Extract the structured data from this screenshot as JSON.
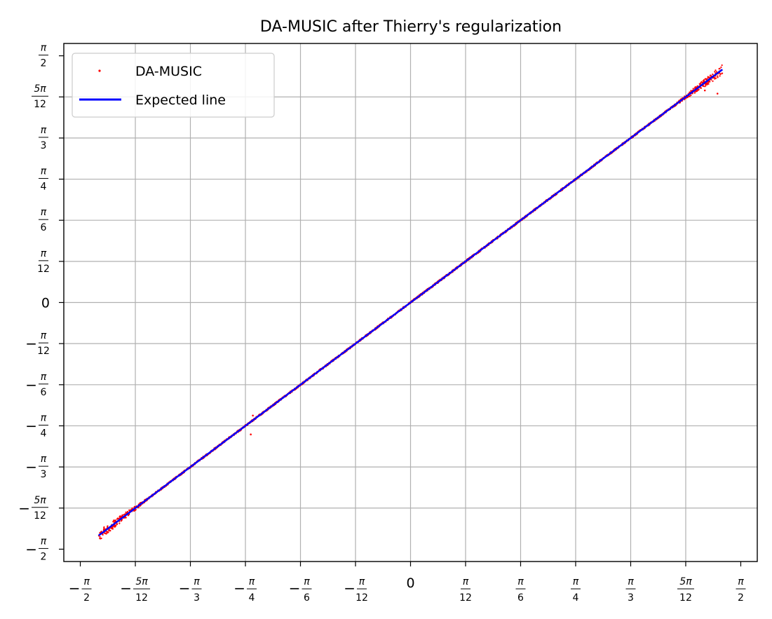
{
  "chart_data": {
    "type": "scatter",
    "title": "DA-MUSIC after Thierry's regularization",
    "xlabel": "",
    "ylabel": "",
    "xlim": [
      -1.6493,
      1.6493
    ],
    "ylim": [
      -1.6493,
      1.6493
    ],
    "grid": true,
    "legend": "upper left",
    "xticks": [
      {
        "value": -1.5708,
        "neg": true,
        "num": "π",
        "den": "2"
      },
      {
        "value": -1.309,
        "neg": true,
        "num": "5π",
        "den": "12"
      },
      {
        "value": -1.0472,
        "neg": true,
        "num": "π",
        "den": "3"
      },
      {
        "value": -0.7854,
        "neg": true,
        "num": "π",
        "den": "4"
      },
      {
        "value": -0.5236,
        "neg": true,
        "num": "π",
        "den": "6"
      },
      {
        "value": -0.2618,
        "neg": true,
        "num": "π",
        "den": "12"
      },
      {
        "value": 0,
        "zero": "0"
      },
      {
        "value": 0.2618,
        "neg": false,
        "num": "π",
        "den": "12"
      },
      {
        "value": 0.5236,
        "neg": false,
        "num": "π",
        "den": "6"
      },
      {
        "value": 0.7854,
        "neg": false,
        "num": "π",
        "den": "4"
      },
      {
        "value": 1.0472,
        "neg": false,
        "num": "π",
        "den": "3"
      },
      {
        "value": 1.309,
        "neg": false,
        "num": "5π",
        "den": "12"
      },
      {
        "value": 1.5708,
        "neg": false,
        "num": "π",
        "den": "2"
      }
    ],
    "yticks": [
      {
        "value": 1.5708,
        "neg": false,
        "num": "π",
        "den": "2"
      },
      {
        "value": 1.309,
        "neg": false,
        "num": "5π",
        "den": "12"
      },
      {
        "value": 1.0472,
        "neg": false,
        "num": "π",
        "den": "3"
      },
      {
        "value": 0.7854,
        "neg": false,
        "num": "π",
        "den": "4"
      },
      {
        "value": 0.5236,
        "neg": false,
        "num": "π",
        "den": "6"
      },
      {
        "value": 0.2618,
        "neg": false,
        "num": "π",
        "den": "12"
      },
      {
        "value": 0,
        "zero": "0"
      },
      {
        "value": -0.2618,
        "neg": true,
        "num": "π",
        "den": "12"
      },
      {
        "value": -0.5236,
        "neg": true,
        "num": "π",
        "den": "6"
      },
      {
        "value": -0.7854,
        "neg": true,
        "num": "π",
        "den": "4"
      },
      {
        "value": -1.0472,
        "neg": true,
        "num": "π",
        "den": "3"
      },
      {
        "value": -1.309,
        "neg": true,
        "num": "5π",
        "den": "12"
      },
      {
        "value": -1.5708,
        "neg": true,
        "num": "π",
        "den": "2"
      }
    ],
    "series": [
      {
        "name": "DA-MUSIC",
        "kind": "scatter",
        "color": "#ff0000",
        "x_range": [
          -1.4835,
          1.4835
        ],
        "relation": "y ≈ x",
        "outliers": [
          {
            "x": -0.7854,
            "y": -0.7854
          },
          {
            "x": -0.76,
            "y": -0.84
          },
          {
            "x": -0.75,
            "y": -0.72
          },
          {
            "x": 1.46,
            "y": 1.33
          },
          {
            "x": 1.4,
            "y": 1.35
          }
        ]
      },
      {
        "name": "Expected line",
        "kind": "line",
        "color": "#0000ff",
        "x": [
          -1.4835,
          1.4835
        ],
        "y": [
          -1.4835,
          1.4835
        ]
      }
    ]
  }
}
